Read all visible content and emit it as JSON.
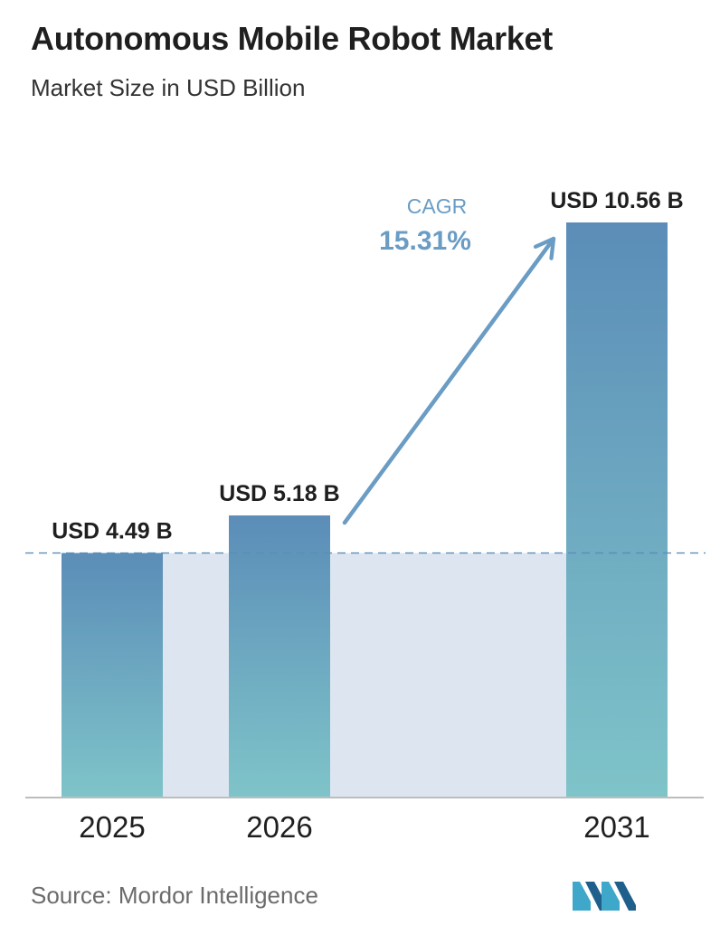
{
  "header": {
    "title": "Autonomous Mobile Robot Market",
    "subtitle": "Market Size in USD Billion"
  },
  "footer": {
    "source": "Source:  Mordor Intelligence"
  },
  "chart_data": {
    "type": "bar",
    "title": "Autonomous Mobile Robot Market",
    "subtitle": "Market Size in USD Billion",
    "categories": [
      "2025",
      "2026",
      "2031"
    ],
    "values": [
      4.49,
      5.18,
      10.56
    ],
    "data_labels": [
      "USD 4.49 B",
      "USD 5.18 B",
      "USD 10.56 B"
    ],
    "annotation": {
      "label": "CAGR",
      "value": "15.31%"
    },
    "ylim": [
      0,
      10.56
    ],
    "grid": false,
    "reference_line_value": 4.49,
    "colors": {
      "bar_top": "#5b8db8",
      "bar_bottom": "#7fc4c9",
      "band": "#dde6f0",
      "arrow": "#6a9cc4",
      "reference_line": "#5b8db8",
      "axis": "#bdbdbd"
    }
  }
}
